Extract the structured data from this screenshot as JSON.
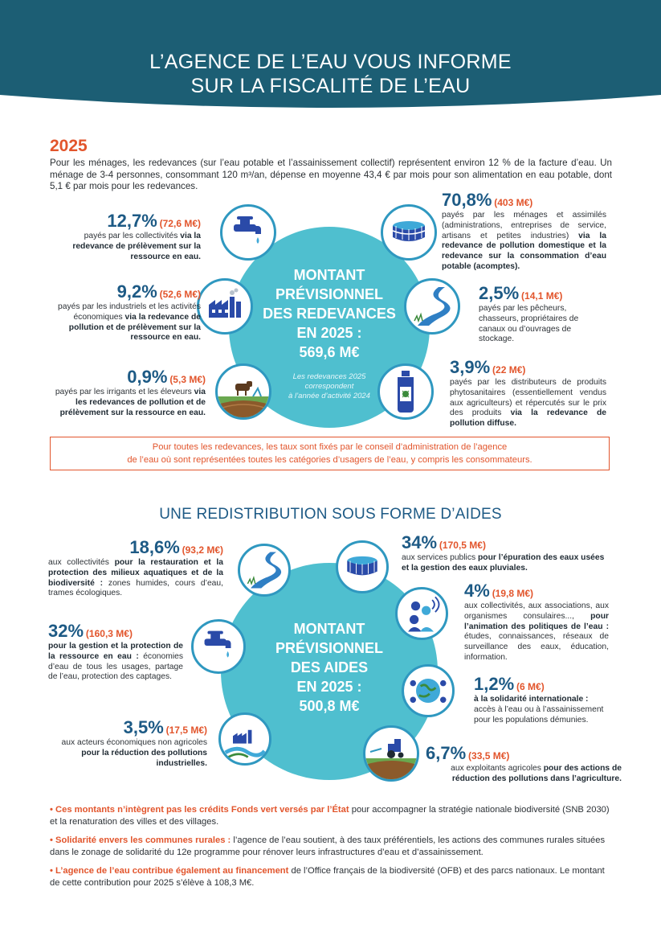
{
  "header": {
    "line1": "L’AGENCE DE L’EAU VOUS INFORME",
    "line2": "SUR LA FISCALITÉ DE L’EAU"
  },
  "intro": {
    "year": "2025",
    "text": "Pour les ménages, les redevances (sur l’eau potable et l’assainissement collectif) représentent environ 12 % de la facture d’eau. Un ménage de 3-4 personnes, consommant 120 m³/an, dépense en moyenne 43,4 € par mois pour son alimentation en eau potable, dont 5,1 € par mois pour les redevances."
  },
  "redevances": {
    "title": [
      "MONTANT",
      "PRÉVISIONNEL",
      "DES REDEVANCES",
      "EN 2025 :",
      "569,6 M€"
    ],
    "note": [
      "Les redevances 2025",
      "correspondent",
      "à l’année d’activité 2024"
    ],
    "items": [
      {
        "pct": "12,7",
        "unit": "%",
        "amount": "(72,6 M€)",
        "text": "payés par les collectivités ",
        "bold": "via la redevance de prélèvement sur la ressource en eau.",
        "after": "",
        "icon": "faucet-icon"
      },
      {
        "pct": "9,2",
        "unit": "%",
        "amount": "(52,6 M€)",
        "text": "payés par les industriels et les activités économiques ",
        "bold": "via la redevance de pollution et de prélèvement sur la ressource en eau.",
        "after": "",
        "icon": "factory-icon"
      },
      {
        "pct": "0,9",
        "unit": "%",
        "amount": "(5,3 M€)",
        "text": "payés par les irrigants et les éleveurs ",
        "bold": "via les redevances de pollution et de prélèvement sur la ressource en eau.",
        "after": "",
        "icon": "farm-icon"
      },
      {
        "pct": "70,8",
        "unit": "%",
        "amount": "(403 M€)",
        "text": "payés par les ménages et assimilés (administrations, entreprises de service, artisans et petites industries) ",
        "bold": "via la redevance de pollution domestique et la redevance sur la consommation d’eau potable (acomptes).",
        "after": "",
        "icon": "water-tank-icon"
      },
      {
        "pct": "2,5",
        "unit": "%",
        "amount": "(14,1 M€)",
        "text": "payés par les pêcheurs, chasseurs, propriétaires de canaux ou d’ouvrages de stockage.",
        "bold": "",
        "after": "",
        "icon": "river-icon"
      },
      {
        "pct": "3,9",
        "unit": "%",
        "amount": "(22 M€)",
        "text": "payés par les distributeurs de produits phytosanitaires (essentiellement vendus aux agriculteurs) et répercutés sur le prix des produits ",
        "bold": "via la redevance de pollution diffuse.",
        "after": "",
        "icon": "pesticide-bottle-icon"
      }
    ]
  },
  "notice": {
    "line1": "Pour toutes les redevances, les taux sont fixés par le conseil d’administration de l’agence",
    "line2": "de l’eau où sont représentées toutes les catégories d’usagers de l’eau, y compris les consommateurs."
  },
  "aides": {
    "section_title": "UNE REDISTRIBUTION SOUS FORME D’AIDES",
    "title": [
      "MONTANT",
      "PRÉVISIONNEL",
      "DES AIDES",
      "EN 2025 :",
      "500,8 M€"
    ],
    "items": [
      {
        "pct": "18,6",
        "unit": "%",
        "amount": "(93,2 M€)",
        "text": "aux collectivités ",
        "bold": "pour la restauration et la protection des milieux aquatiques et de la biodiversité :",
        "after": " zones humides, cours d’eau, trames écologiques.",
        "icon": "river-icon"
      },
      {
        "pct": "32",
        "unit": "%",
        "amount": "(160,3 M€)",
        "text": "",
        "bold": "pour la gestion et la protection de la ressource en eau :",
        "after": " économies d’eau de tous les usages, partage de l’eau, protection des captages.",
        "icon": "faucet-icon"
      },
      {
        "pct": "3,5",
        "unit": "%",
        "amount": "(17,5 M€)",
        "text": "aux acteurs économiques non agricoles ",
        "bold": "pour la réduction des pollutions industrielles.",
        "after": "",
        "icon": "factory-icon"
      },
      {
        "pct": "34",
        "unit": "%",
        "amount": "(170,5 M€)",
        "text": "aux services publics ",
        "bold": "pour l’épuration des eaux usées et la gestion des eaux pluviales.",
        "after": "",
        "icon": "water-tank-icon"
      },
      {
        "pct": "4",
        "unit": "%",
        "amount": "(19,8 M€)",
        "text": "aux collectivités, aux associations, aux organismes consulaires..., ",
        "bold": "pour l’animation des politiques de l’eau :",
        "after": " études, connaissances, réseaux de surveillance des eaux, éducation, information.",
        "icon": "people-network-icon"
      },
      {
        "pct": "1,2",
        "unit": "%",
        "amount": "(6 M€)",
        "text": "",
        "bold": "à la solidarité internationale :",
        "after": " accès à l’eau ou à l’assainissement pour les populations démunies.",
        "icon": "globe-people-icon"
      },
      {
        "pct": "6,7",
        "unit": "%",
        "amount": "(33,5 M€)",
        "text": "aux exploitants agricoles ",
        "bold": "pour des actions de réduction des pollutions dans l’agriculture.",
        "after": "",
        "icon": "tractor-icon"
      }
    ]
  },
  "bullets": [
    {
      "lead": "Ces montants n’intègrent pas les crédits Fonds vert versés par l’État",
      "text": " pour accompagner la stratégie nationale biodiversité (SNB 2030) et la renaturation des villes et des villages."
    },
    {
      "lead": "Solidarité envers les communes rurales :",
      "text": " l’agence de l’eau soutient, à des taux préférentiels, les actions des communes rurales situées dans le zonage de solidarité du 12e programme pour rénover leurs infrastructures d’eau et d’assainissement."
    },
    {
      "lead": "L’agence de l’eau contribue également au financement",
      "text": " de l’Office français de la biodiversité (OFB) et des parcs nationaux. Le montant de cette contribution pour 2025 s’élève à 108,3 M€."
    }
  ],
  "colors": {
    "accent": "#e2552c",
    "navy": "#1d5a85",
    "teal": "#4fbfcf",
    "banner": "#1c5e74"
  }
}
